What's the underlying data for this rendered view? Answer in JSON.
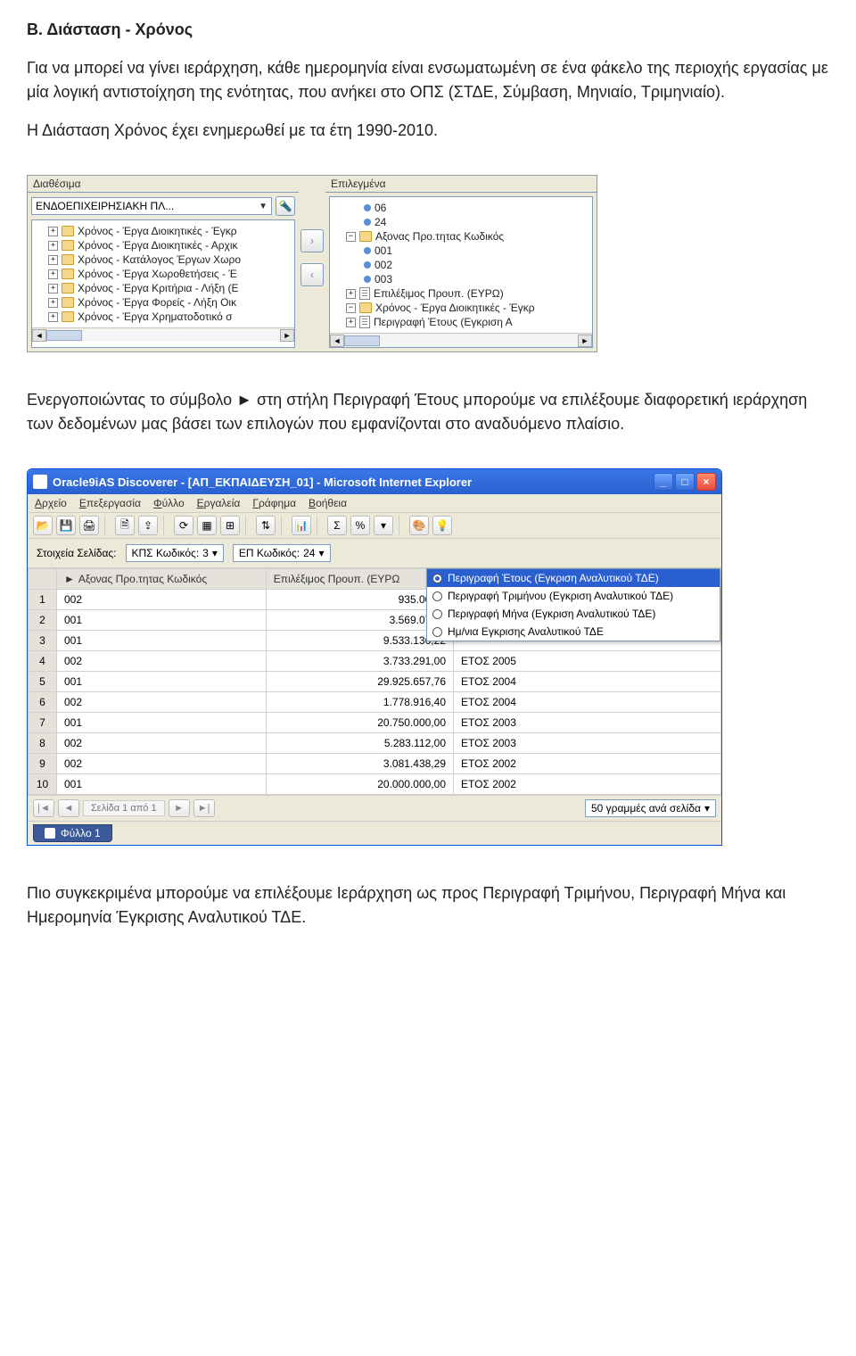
{
  "doc": {
    "heading": "Β. Διάσταση - Χρόνος",
    "p1": "Για να μπορεί να γίνει ιεράρχηση, κάθε ημερομηνία είναι ενσωματωμένη σε ένα φάκελο της περιοχής εργασίας με μία λογική αντιστοίχηση της ενότητας, που ανήκει στο ΟΠΣ (ΣΤΔΕ, Σύμβαση, Μηνιαίο, Τριμηνιαίο).",
    "p2": "Η Διάσταση Χρόνος έχει ενημερωθεί με τα έτη 1990-2010.",
    "p3": "Ενεργοποιώντας το σύμβολο ► στη στήλη Περιγραφή Έτους μπορούμε να επιλέξουμε διαφορετική ιεράρχηση των δεδομένων μας βάσει των επιλογών που εμφανίζονται στο αναδυόμενο πλαίσιο.",
    "p4": "Πιο συγκεκριμένα μπορούμε να επιλέξουμε Ιεράρχηση ως προς Περιγραφή Τριμήνου, Περιγραφή Μήνα και Ημερομηνία Έγκρισης Αναλυτικού ΤΔΕ."
  },
  "treePanel": {
    "leftHeader": "Διαθέσιμα",
    "rightHeader": "Επιλεγμένα",
    "combo": "ΕΝΔΟΕΠΙΧΕΙΡΗΣΙΑΚΗ ΠΛ...",
    "leftItems": [
      "Χρόνος - Έργα Διοικητικές - Έγκρ",
      "Χρόνος - Έργα Διοικητικές - Αρχικ",
      "Χρόνος - Κατάλογος Έργων Χωρο",
      "Χρόνος - Έργα Χωροθετήσεις - Έ",
      "Χρόνος - Έργα Κριτήρια - Λήξη (Ε",
      "Χρόνος - Έργα Φορείς - Λήξη Οικ",
      "Χρόνος - Έργα Χρηματοδοτικό σ"
    ],
    "rightItems": [
      {
        "type": "leaf",
        "label": "06"
      },
      {
        "type": "leaf",
        "label": "24"
      },
      {
        "type": "branch",
        "label": "Αξονας Προ.τητας Κωδικός"
      },
      {
        "type": "leaf",
        "label": "001"
      },
      {
        "type": "leaf",
        "label": "002"
      },
      {
        "type": "leaf",
        "label": "003"
      },
      {
        "type": "doc",
        "label": "Επιλέξιμος Προυπ. (ΕΥΡΩ)"
      },
      {
        "type": "branch",
        "label": "Χρόνος - Έργα Διοικητικές - Έγκρ"
      },
      {
        "type": "doc",
        "label": "Περιγραφή Έτους (Εγκριση Α"
      }
    ]
  },
  "app": {
    "title": "Oracle9iAS Discoverer - [ΑΠ_ΕΚΠΑΙΔΕΥΣΗ_01] - Microsoft Internet Explorer",
    "menus": [
      "Αρχείο",
      "Επεξεργασία",
      "Φύλλο",
      "Εργαλεία",
      "Γράφημα",
      "Βοήθεια"
    ],
    "pageLabel": "Στοιχεία Σελίδας:",
    "kpsLabel": "ΚΠΣ Κωδικός:",
    "kpsVal": "3",
    "epLabel": "ΕΠ Κωδικός:",
    "epVal": "24",
    "colAxis": "Αξονας Προ.τητας Κωδικός",
    "colBudget": "Επιλέξιμος Προυπ. (ΕΥΡΩ",
    "rows": [
      {
        "n": "1",
        "ax": "002",
        "val": "935.000,0"
      },
      {
        "n": "2",
        "ax": "001",
        "val": "3.569.072,8"
      },
      {
        "n": "3",
        "ax": "001",
        "val": "9.533.136,22",
        "extra": ""
      },
      {
        "n": "4",
        "ax": "002",
        "val": "3.733.291,00",
        "extra": "ΕΤΟΣ 2005"
      },
      {
        "n": "5",
        "ax": "001",
        "val": "29.925.657,76",
        "extra": "ΕΤΟΣ 2004"
      },
      {
        "n": "6",
        "ax": "002",
        "val": "1.778.916,40",
        "extra": "ΕΤΟΣ 2004"
      },
      {
        "n": "7",
        "ax": "001",
        "val": "20.750.000,00",
        "extra": "ΕΤΟΣ 2003"
      },
      {
        "n": "8",
        "ax": "002",
        "val": "5.283.112,00",
        "extra": "ΕΤΟΣ 2003"
      },
      {
        "n": "9",
        "ax": "002",
        "val": "3.081.438,29",
        "extra": "ΕΤΟΣ 2002"
      },
      {
        "n": "10",
        "ax": "001",
        "val": "20.000.000,00",
        "extra": "ΕΤΟΣ 2002"
      }
    ],
    "dropdown": [
      "Περιγραφή Έτους (Εγκριση Αναλυτικού ΤΔΕ)",
      "Περιγραφή Τριμήνου (Εγκριση Αναλυτικού ΤΔΕ)",
      "Περιγραφή Μήνα (Εγκριση Αναλυτικού ΤΔΕ)",
      "Ημ/νια Εγκρισης Αναλυτικού ΤΔΕ"
    ],
    "pagerText": "Σελίδα 1 από 1",
    "rowsPerPage": "50 γραμμές ανά σελίδα",
    "sheetTab": "Φύλλο 1"
  }
}
